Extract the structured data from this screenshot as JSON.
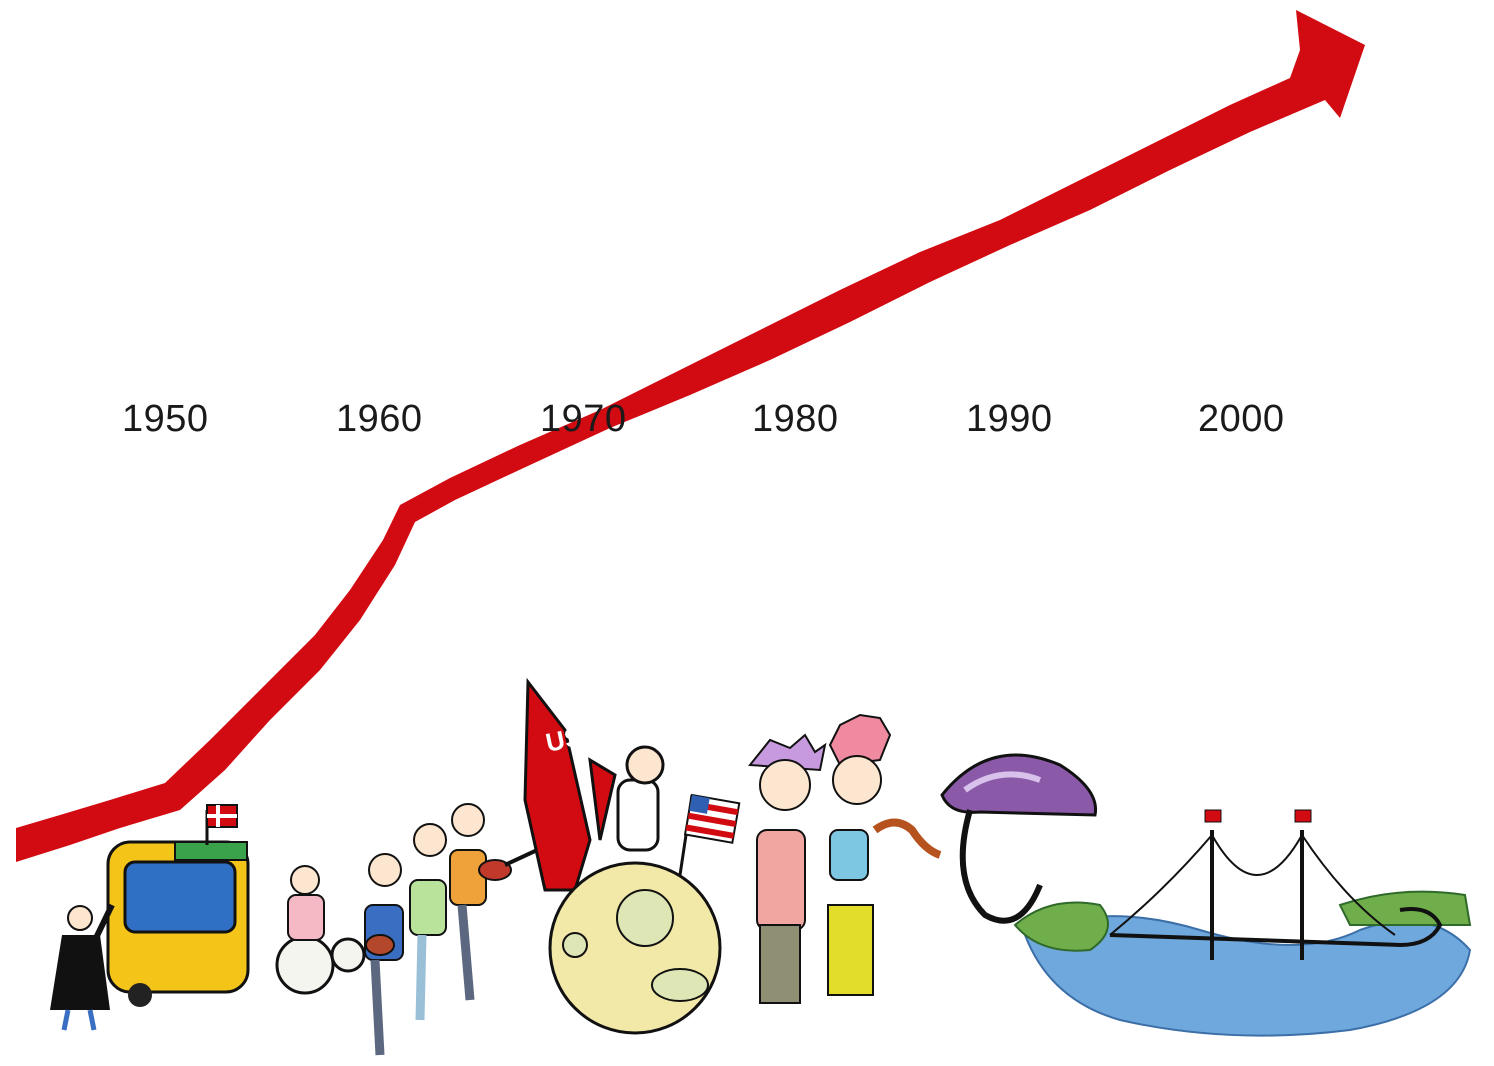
{
  "timeline": {
    "years": [
      "1950",
      "1960",
      "1970",
      "1980",
      "1990",
      "2000"
    ]
  },
  "trend_arrow": {
    "color": "#d20a11",
    "direction": "up-right"
  },
  "illustrations": [
    {
      "decade": "1950",
      "subject": "yellow bus with Danish flag and waving man"
    },
    {
      "decade": "1960",
      "subject": "rock band with drums and guitars"
    },
    {
      "decade": "1970",
      "subject": "US rocket, astronaut with American flag on the moon"
    },
    {
      "decade": "1980",
      "subject": "punk couple with mohawks"
    },
    {
      "decade": "1990",
      "subject": "purple bicycle helmet"
    },
    {
      "decade": "2000",
      "subject": "suspension bridge with Danish flags over water"
    }
  ],
  "drawn_text": {
    "rocket_label": "US"
  },
  "colors": {
    "arrow": "#d20a11",
    "bus": "#f4c518",
    "helmet": "#8a5aa8",
    "moon": "#f2e8a8",
    "water": "#6fa8dc",
    "land": "#6fae4a"
  }
}
